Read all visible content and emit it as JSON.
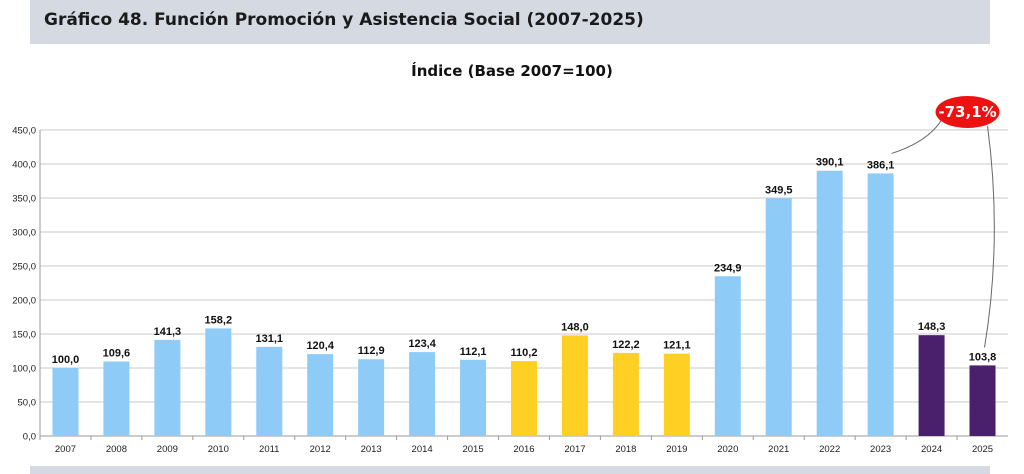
{
  "header": {
    "title": "Gráfico 48. Función Promoción y Asistencia Social (2007-2025)"
  },
  "chart_data": {
    "type": "bar",
    "title": "Índice (Base 2007=100)",
    "xlabel": "",
    "ylabel": "",
    "ylim": [
      0,
      450
    ],
    "yticks": [
      0,
      50,
      100,
      150,
      200,
      250,
      300,
      350,
      400,
      450
    ],
    "ytick_labels": [
      "0,0",
      "50,0",
      "100,0",
      "150,0",
      "200,0",
      "250,0",
      "300,0",
      "350,0",
      "400,0",
      "450,0"
    ],
    "grid": true,
    "categories": [
      "2007",
      "2008",
      "2009",
      "2010",
      "2011",
      "2012",
      "2013",
      "2014",
      "2015",
      "2016",
      "2017",
      "2018",
      "2019",
      "2020",
      "2021",
      "2022",
      "2023",
      "2024",
      "2025"
    ],
    "values": [
      100.0,
      109.6,
      141.3,
      158.2,
      131.1,
      120.4,
      112.9,
      123.4,
      112.1,
      110.2,
      148.0,
      122.2,
      121.1,
      234.9,
      349.5,
      390.1,
      386.1,
      148.3,
      103.8
    ],
    "value_labels": [
      "100,0",
      "109,6",
      "141,3",
      "158,2",
      "131,1",
      "120,4",
      "112,9",
      "123,4",
      "112,1",
      "110,2",
      "148,0",
      "122,2",
      "121,1",
      "234,9",
      "349,5",
      "390,1",
      "386,1",
      "148,3",
      "103,8"
    ],
    "colors": [
      "#8ecbf7",
      "#8ecbf7",
      "#8ecbf7",
      "#8ecbf7",
      "#8ecbf7",
      "#8ecbf7",
      "#8ecbf7",
      "#8ecbf7",
      "#8ecbf7",
      "#ffd024",
      "#ffd024",
      "#ffd024",
      "#ffd024",
      "#8ecbf7",
      "#8ecbf7",
      "#8ecbf7",
      "#8ecbf7",
      "#4a1f6b",
      "#4a1f6b"
    ],
    "annotation": {
      "text": "-73,1%",
      "color": "#ee1111",
      "from": "2023",
      "to": "2025"
    }
  }
}
